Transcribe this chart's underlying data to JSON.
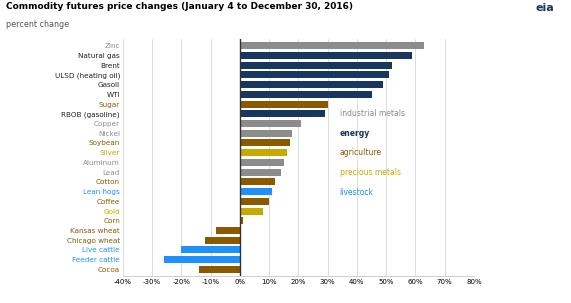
{
  "title": "Commodity futures price changes (January 4 to December 30, 2016)",
  "subtitle": "percent change",
  "categories": [
    "Zinc",
    "Natural gas",
    "Brent",
    "ULSD (heating oil)",
    "Gasoil",
    "WTI",
    "Sugar",
    "RBOB (gasoline)",
    "Copper",
    "Nickel",
    "Soybean",
    "Silver",
    "Aluminum",
    "Lead",
    "Cotton",
    "Lean hogs",
    "Coffee",
    "Gold",
    "Corn",
    "Kansas wheat",
    "Chicago wheat",
    "Live cattle",
    "Feeder cattle",
    "Cocoa"
  ],
  "values": [
    63,
    59,
    52,
    51,
    49,
    45,
    30,
    29,
    21,
    18,
    17,
    16,
    15,
    14,
    12,
    11,
    10,
    8,
    1,
    -8,
    -12,
    -20,
    -26,
    -14
  ],
  "colors": [
    "#8c8c8c",
    "#17375e",
    "#17375e",
    "#17375e",
    "#17375e",
    "#17375e",
    "#8b5a00",
    "#17375e",
    "#8c8c8c",
    "#8c8c8c",
    "#8b5a00",
    "#c9a800",
    "#8c8c8c",
    "#8c8c8c",
    "#8b5a00",
    "#1e90ff",
    "#8b5a00",
    "#c9a800",
    "#8b5a00",
    "#8b5a00",
    "#8b5a00",
    "#1e90ff",
    "#1e90ff",
    "#8b5a00"
  ],
  "label_colors": [
    "#8c8c8c",
    "#222222",
    "#222222",
    "#222222",
    "#222222",
    "#222222",
    "#8b5a00",
    "#222222",
    "#8c8c8c",
    "#8c8c8c",
    "#8b5a00",
    "#c9a800",
    "#8c8c8c",
    "#8c8c8c",
    "#8b5a00",
    "#1e90ff",
    "#8b5a00",
    "#c9a800",
    "#8b5a00",
    "#8b5a00",
    "#8b5a00",
    "#1e90ff",
    "#1e90ff",
    "#8b5a00"
  ],
  "xlim": [
    -40,
    80
  ],
  "xticks": [
    -40,
    -30,
    -20,
    -10,
    0,
    10,
    20,
    30,
    40,
    50,
    60,
    70,
    80
  ],
  "xtick_labels": [
    "-40%",
    "-30%",
    "-20%",
    "-10%",
    "0%",
    "10%",
    "20%",
    "30%",
    "40%",
    "50%",
    "60%",
    "70%",
    "80%"
  ],
  "legend": {
    "industrial metals": "#8c8c8c",
    "energy": "#17375e",
    "agriculture": "#8b5a00",
    "precious metals": "#c9a800",
    "livestock": "#1e90ff"
  },
  "legend_bold": [
    "energy"
  ],
  "bar_height": 0.72,
  "background_color": "#ffffff",
  "grid_color": "#d0d0d0"
}
